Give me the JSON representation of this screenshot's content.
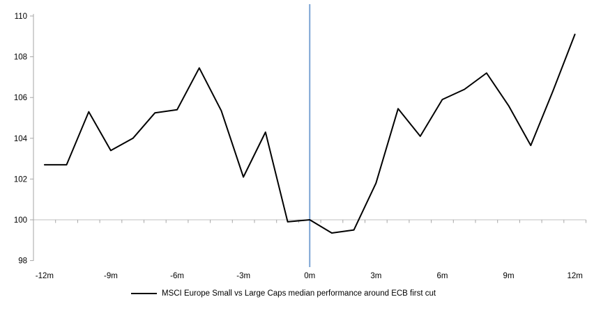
{
  "chart_data": {
    "type": "line",
    "title": "",
    "legend": "MSCI Europe Small vs Large Caps median performance around ECB first cut",
    "x_months": [
      -12,
      -11,
      -10,
      -9,
      -8,
      -7,
      -6,
      -5,
      -4,
      -3,
      -2,
      -1,
      0,
      1,
      2,
      3,
      4,
      5,
      6,
      7,
      8,
      9,
      10,
      11,
      12
    ],
    "x_tick_labels": [
      "-12m",
      "-9m",
      "-6m",
      "-3m",
      "0m",
      "3m",
      "6m",
      "9m",
      "12m"
    ],
    "x_label_every_months": 3,
    "series": [
      {
        "name": "MSCI Europe Small vs Large Caps median performance around ECB first cut",
        "color": "#000000",
        "values": [
          102.7,
          102.7,
          105.3,
          103.4,
          104.0,
          105.25,
          105.4,
          107.45,
          105.35,
          102.1,
          104.3,
          99.9,
          100.0,
          99.35,
          99.5,
          101.8,
          105.45,
          104.1,
          105.9,
          106.4,
          107.2,
          105.6,
          103.65,
          106.3,
          109.1
        ]
      }
    ],
    "y_ticks": [
      98,
      100,
      102,
      104,
      106,
      108,
      110
    ],
    "ylim": [
      98,
      110.5
    ],
    "baseline_value": 100,
    "event_line": {
      "x_month": 0,
      "color": "#7AA3D4"
    },
    "axis_color": "#A6A6A6",
    "baseline_color": "#BFBFBF",
    "grid": "off",
    "legend_position": "bottom-center"
  }
}
